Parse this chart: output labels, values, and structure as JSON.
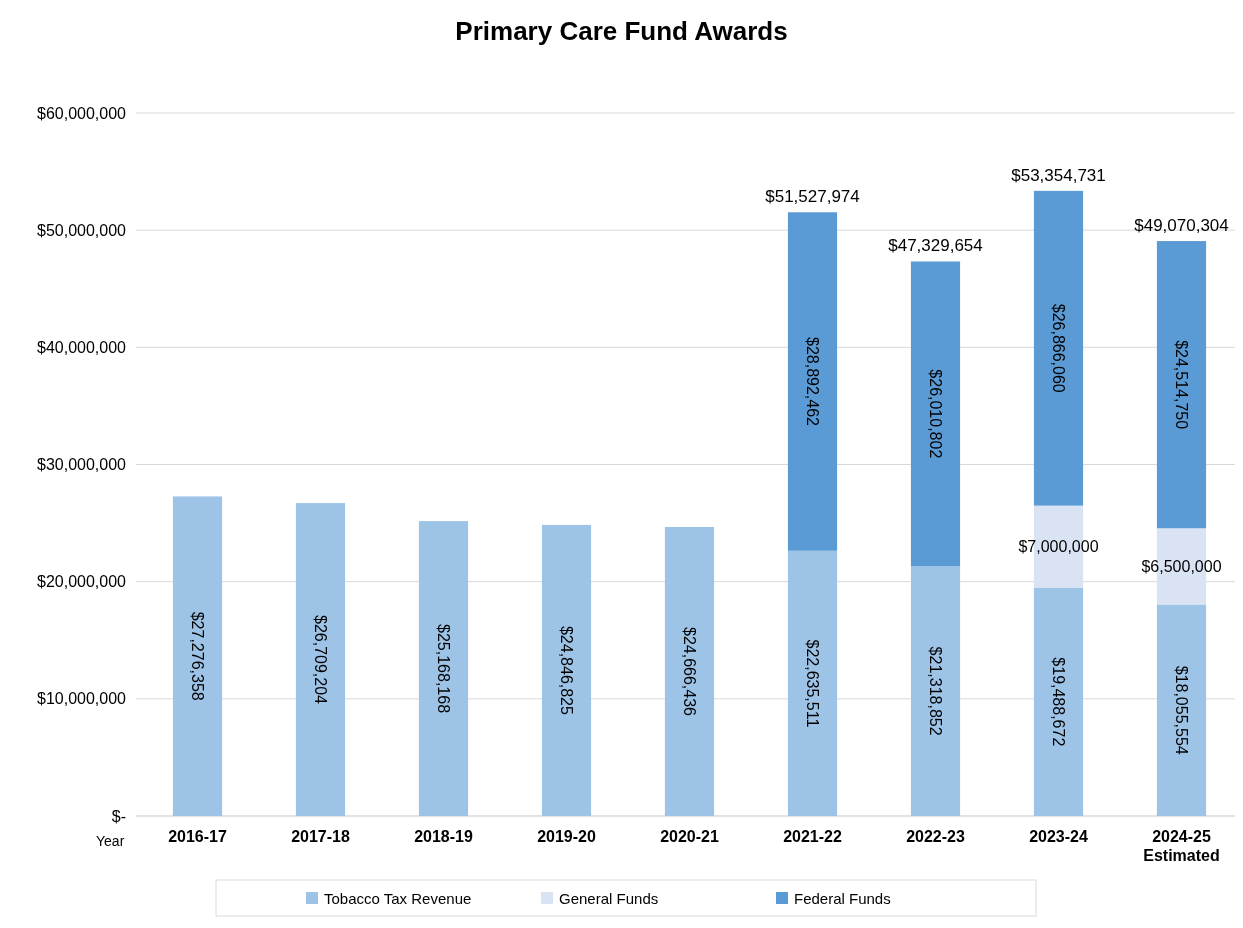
{
  "chart_data": {
    "type": "bar",
    "title": "Primary Care Fund Awards",
    "xlabel": "Year",
    "stacked": true,
    "categories": [
      "2016-17",
      "2017-18",
      "2018-19",
      "2019-20",
      "2020-21",
      "2021-22",
      "2022-23",
      "2023-24",
      "2024-25 Estimated"
    ],
    "series": [
      {
        "name": "Tobacco Tax Revenue",
        "color": "#9dc3e6",
        "values": [
          27276358,
          26709204,
          25168168,
          24846825,
          24666436,
          22635511,
          21318852,
          19488672,
          18055554
        ],
        "value_labels": [
          "$27,276,358",
          "$26,709,204",
          "$25,168,168",
          "$24,846,825",
          "$24,666,436",
          "$22,635,511",
          "$21,318,852",
          "$19,488,672",
          "$18,055,554"
        ]
      },
      {
        "name": "General Funds",
        "color": "#dae3f3",
        "values": [
          null,
          null,
          null,
          null,
          null,
          null,
          null,
          7000000,
          6500000
        ],
        "value_labels": [
          null,
          null,
          null,
          null,
          null,
          null,
          null,
          "$7,000,000",
          "$6,500,000"
        ]
      },
      {
        "name": "Federal Funds",
        "color": "#5b9bd5",
        "values": [
          null,
          null,
          null,
          null,
          null,
          28892462,
          26010802,
          26866060,
          24514750
        ],
        "value_labels": [
          null,
          null,
          null,
          null,
          null,
          "$28,892,462",
          "$26,010,802",
          "$26,866,060",
          "$24,514,750"
        ]
      }
    ],
    "totals": [
      null,
      null,
      null,
      null,
      null,
      "$51,527,974",
      "$47,329,654",
      "$53,354,731",
      "$49,070,304"
    ],
    "ylim": [
      0,
      60000000
    ],
    "yticks": [
      {
        "value": 0,
        "label": "$-"
      },
      {
        "value": 10000000,
        "label": "$10,000,000"
      },
      {
        "value": 20000000,
        "label": "$20,000,000"
      },
      {
        "value": 30000000,
        "label": "$30,000,000"
      },
      {
        "value": 40000000,
        "label": "$40,000,000"
      },
      {
        "value": 50000000,
        "label": "$50,000,000"
      },
      {
        "value": 60000000,
        "label": "$60,000,000"
      }
    ],
    "grid": "y",
    "legend": "bottom"
  }
}
